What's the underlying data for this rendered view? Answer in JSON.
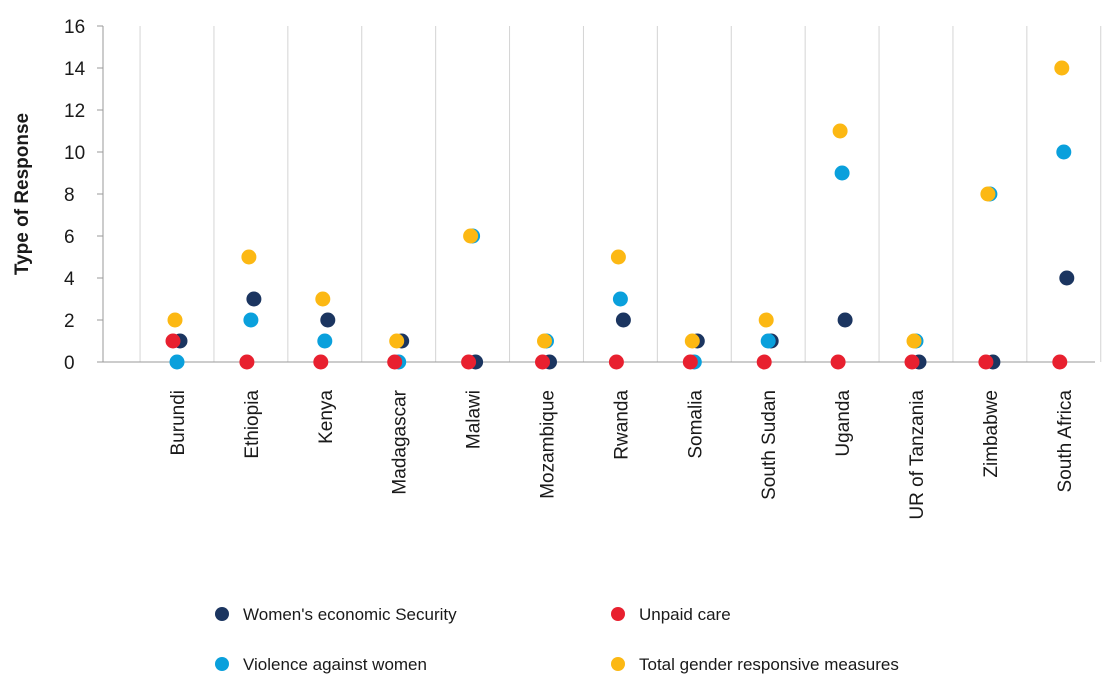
{
  "chart_data": {
    "type": "scatter",
    "title": "",
    "xlabel": "",
    "ylabel": "Type of Response",
    "ylim": [
      0,
      16
    ],
    "yticks": [
      0,
      2,
      4,
      6,
      8,
      10,
      12,
      14,
      16
    ],
    "grid": "vertical",
    "legend_position": "bottom",
    "categories": [
      "Burundi",
      "Ethiopia",
      "Kenya",
      "Madagascar",
      "Malawi",
      "Mozambique",
      "Rwanda",
      "Somalia",
      "South Sudan",
      "Uganda",
      "UR of Tanzania",
      "Zimbabwe",
      "South Africa"
    ],
    "series": [
      {
        "name": "Women's economic Security",
        "color": "#1b3560",
        "values": [
          1,
          3,
          2,
          1,
          0,
          0,
          2,
          1,
          1,
          2,
          0,
          0,
          4
        ]
      },
      {
        "name": "Violence against women",
        "color": "#0aa0dc",
        "values": [
          0,
          2,
          1,
          0,
          6,
          1,
          3,
          0,
          1,
          9,
          1,
          8,
          10
        ]
      },
      {
        "name": "Unpaid care",
        "color": "#e8202f",
        "values": [
          1,
          0,
          0,
          0,
          0,
          0,
          0,
          0,
          0,
          0,
          0,
          0,
          0
        ]
      },
      {
        "name": "Total gender responsive measures",
        "color": "#fcb813",
        "values": [
          2,
          5,
          3,
          1,
          6,
          1,
          5,
          1,
          2,
          11,
          1,
          8,
          14
        ]
      }
    ]
  }
}
